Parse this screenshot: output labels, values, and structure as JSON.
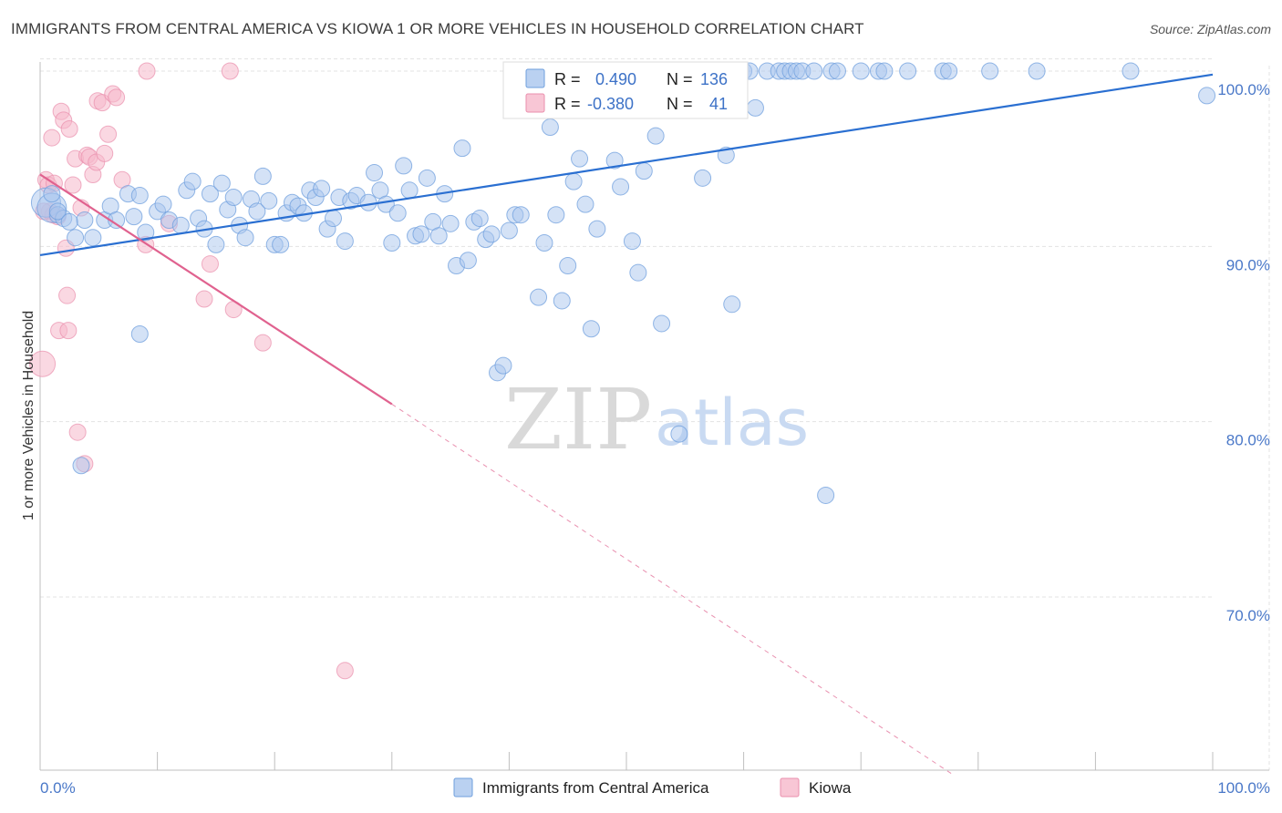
{
  "title": "IMMIGRANTS FROM CENTRAL AMERICA VS KIOWA 1 OR MORE VEHICLES IN HOUSEHOLD CORRELATION CHART",
  "source": "Source: ZipAtlas.com",
  "watermark": {
    "zip": "ZIP",
    "atlas": "atlas"
  },
  "colors": {
    "blue_fill": "#a9c6ee",
    "blue_stroke": "#6f9fdd",
    "blue_line": "#2a6fd1",
    "pink_fill": "#f6b8cb",
    "pink_stroke": "#ea8fad",
    "pink_line": "#e0628f",
    "tick_color": "#4a78c8",
    "grid": "#e3e3e3"
  },
  "stats": {
    "r_label": "R =",
    "n_label": "N =",
    "blue_r": "0.490",
    "blue_n": "136",
    "pink_r": "-0.380",
    "pink_n": "41"
  },
  "chart_data": {
    "type": "scatter",
    "title": "IMMIGRANTS FROM CENTRAL AMERICA VS KIOWA 1 OR MORE VEHICLES IN HOUSEHOLD CORRELATION CHART",
    "xlabel": "",
    "ylabel": "1 or more Vehicles in Household",
    "xlim": [
      0,
      100
    ],
    "ylim": [
      60.3,
      100.8
    ],
    "x_tick_labels": [
      "0.0%",
      "100.0%"
    ],
    "y_ticks": [
      70,
      80,
      90,
      100
    ],
    "y_tick_labels": [
      "70.0%",
      "80.0%",
      "90.0%",
      "100.0%"
    ],
    "grid": true,
    "legend_position": "bottom",
    "series": [
      {
        "name": "Immigrants from Central America",
        "color": "#a9c6ee",
        "r": 0.49,
        "n": 136,
        "trend": {
          "x": [
            0,
            100
          ],
          "y": [
            89.5,
            99.8
          ],
          "dashed_extension": false
        },
        "points": [
          [
            0.5,
            92.5
          ],
          [
            1,
            92.2
          ],
          [
            1.5,
            91.8
          ],
          [
            2,
            91.6
          ],
          [
            3,
            90.5
          ],
          [
            3.8,
            91.5
          ],
          [
            4.5,
            90.5
          ],
          [
            5.5,
            91.5
          ],
          [
            6,
            92.3
          ],
          [
            6.5,
            91.5
          ],
          [
            7.5,
            93
          ],
          [
            8,
            91.7
          ],
          [
            8.5,
            92.9
          ],
          [
            9,
            90.8
          ],
          [
            10,
            92
          ],
          [
            10.5,
            92.4
          ],
          [
            11,
            91.5
          ],
          [
            12,
            91.2
          ],
          [
            12.5,
            93.2
          ],
          [
            13,
            93.7
          ],
          [
            13.5,
            91.6
          ],
          [
            14,
            91
          ],
          [
            14.5,
            93
          ],
          [
            15,
            90.1
          ],
          [
            15.5,
            93.6
          ],
          [
            16,
            92.1
          ],
          [
            16.5,
            92.8
          ],
          [
            17,
            91.2
          ],
          [
            17.5,
            90.5
          ],
          [
            18,
            92.7
          ],
          [
            18.5,
            92
          ],
          [
            19,
            94
          ],
          [
            19.5,
            92.6
          ],
          [
            20,
            90.1
          ],
          [
            20.5,
            90.1
          ],
          [
            21,
            91.9
          ],
          [
            21.5,
            92.5
          ],
          [
            22,
            92.3
          ],
          [
            22.5,
            91.9
          ],
          [
            23,
            93.2
          ],
          [
            23.5,
            92.8
          ],
          [
            24,
            93.3
          ],
          [
            24.5,
            91
          ],
          [
            25,
            91.6
          ],
          [
            25.5,
            92.8
          ],
          [
            26,
            90.3
          ],
          [
            26.5,
            92.6
          ],
          [
            27,
            92.9
          ],
          [
            28,
            92.5
          ],
          [
            28.5,
            94.2
          ],
          [
            29,
            93.2
          ],
          [
            29.5,
            92.4
          ],
          [
            30,
            90.2
          ],
          [
            30.5,
            91.9
          ],
          [
            31,
            94.6
          ],
          [
            31.5,
            93.2
          ],
          [
            32,
            90.6
          ],
          [
            32.5,
            90.7
          ],
          [
            33,
            93.9
          ],
          [
            33.5,
            91.4
          ],
          [
            34,
            90.6
          ],
          [
            34.5,
            93
          ],
          [
            35,
            91.3
          ],
          [
            35.5,
            88.9
          ],
          [
            36,
            95.6
          ],
          [
            36.5,
            89.2
          ],
          [
            37,
            91.4
          ],
          [
            37.5,
            91.6
          ],
          [
            38,
            90.4
          ],
          [
            38.5,
            90.7
          ],
          [
            39,
            82.8
          ],
          [
            39.5,
            83.2
          ],
          [
            40,
            90.9
          ],
          [
            40.5,
            91.8
          ],
          [
            41,
            91.8
          ],
          [
            42,
            98.1
          ],
          [
            42.5,
            87.1
          ],
          [
            43,
            90.2
          ],
          [
            43.5,
            96.8
          ],
          [
            44,
            91.8
          ],
          [
            44.5,
            86.9
          ],
          [
            45,
            88.9
          ],
          [
            45.5,
            93.7
          ],
          [
            46,
            95
          ],
          [
            46.5,
            92.4
          ],
          [
            47,
            85.3
          ],
          [
            47.5,
            91
          ],
          [
            48,
            100
          ],
          [
            49,
            94.9
          ],
          [
            49.5,
            93.4
          ],
          [
            50,
            100
          ],
          [
            50.5,
            90.3
          ],
          [
            51,
            88.5
          ],
          [
            51.5,
            94.3
          ],
          [
            52,
            100
          ],
          [
            52.5,
            96.3
          ],
          [
            53,
            85.6
          ],
          [
            54,
            100
          ],
          [
            54.5,
            79.3
          ],
          [
            55,
            100
          ],
          [
            55.5,
            100
          ],
          [
            56,
            100
          ],
          [
            56.5,
            93.9
          ],
          [
            57,
            100
          ],
          [
            57.5,
            100
          ],
          [
            58,
            98.6
          ],
          [
            58.5,
            95.2
          ],
          [
            59,
            86.7
          ],
          [
            60,
            100
          ],
          [
            60.5,
            100
          ],
          [
            61,
            97.9
          ],
          [
            62,
            100
          ],
          [
            63,
            100
          ],
          [
            63.5,
            100
          ],
          [
            64,
            100
          ],
          [
            64.5,
            100
          ],
          [
            65,
            100
          ],
          [
            66,
            100
          ],
          [
            67,
            75.8
          ],
          [
            67.5,
            100
          ],
          [
            68,
            100
          ],
          [
            70,
            100
          ],
          [
            71.5,
            100
          ],
          [
            72,
            100
          ],
          [
            74,
            100
          ],
          [
            77,
            100
          ],
          [
            77.5,
            100
          ],
          [
            81,
            100
          ],
          [
            85,
            100
          ],
          [
            93,
            100
          ],
          [
            99.5,
            98.6
          ],
          [
            1,
            93
          ],
          [
            1.5,
            92
          ],
          [
            2.5,
            91.4
          ],
          [
            3.5,
            77.5
          ],
          [
            8.5,
            85
          ]
        ]
      },
      {
        "name": "Kiowa",
        "color": "#f6b8cb",
        "r": -0.38,
        "n": 41,
        "trend": {
          "x": [
            0,
            30
          ],
          "y": [
            94.1,
            81
          ],
          "dashed_to": [
            78,
            59.8
          ]
        },
        "points": [
          [
            0.2,
            83.3
          ],
          [
            0.5,
            93.8
          ],
          [
            0.7,
            93.5
          ],
          [
            0.8,
            92
          ],
          [
            1,
            96.2
          ],
          [
            1.2,
            93.6
          ],
          [
            1.5,
            91.7
          ],
          [
            1.6,
            85.2
          ],
          [
            1.8,
            97.7
          ],
          [
            2,
            97.2
          ],
          [
            2.2,
            89.9
          ],
          [
            2.3,
            87.2
          ],
          [
            2.4,
            85.2
          ],
          [
            2.5,
            96.7
          ],
          [
            2.8,
            93.5
          ],
          [
            3,
            95
          ],
          [
            3.2,
            79.4
          ],
          [
            3.5,
            92.2
          ],
          [
            3.8,
            77.6
          ],
          [
            4,
            95.2
          ],
          [
            4.2,
            95.1
          ],
          [
            4.5,
            94.1
          ],
          [
            4.8,
            94.8
          ],
          [
            4.9,
            98.3
          ],
          [
            5.3,
            98.2
          ],
          [
            5.5,
            95.3
          ],
          [
            5.8,
            96.4
          ],
          [
            6.2,
            98.7
          ],
          [
            6.5,
            98.5
          ],
          [
            7,
            93.8
          ],
          [
            9,
            90.1
          ],
          [
            9.1,
            100
          ],
          [
            11,
            91.3
          ],
          [
            14,
            87
          ],
          [
            14.5,
            89
          ],
          [
            16.2,
            100
          ],
          [
            16.5,
            86.4
          ],
          [
            19,
            84.5
          ],
          [
            26,
            65.8
          ],
          [
            1.1,
            91.8
          ],
          [
            0.3,
            92
          ]
        ]
      }
    ]
  },
  "legend": {
    "items": [
      "Immigrants from Central America",
      "Kiowa"
    ]
  }
}
